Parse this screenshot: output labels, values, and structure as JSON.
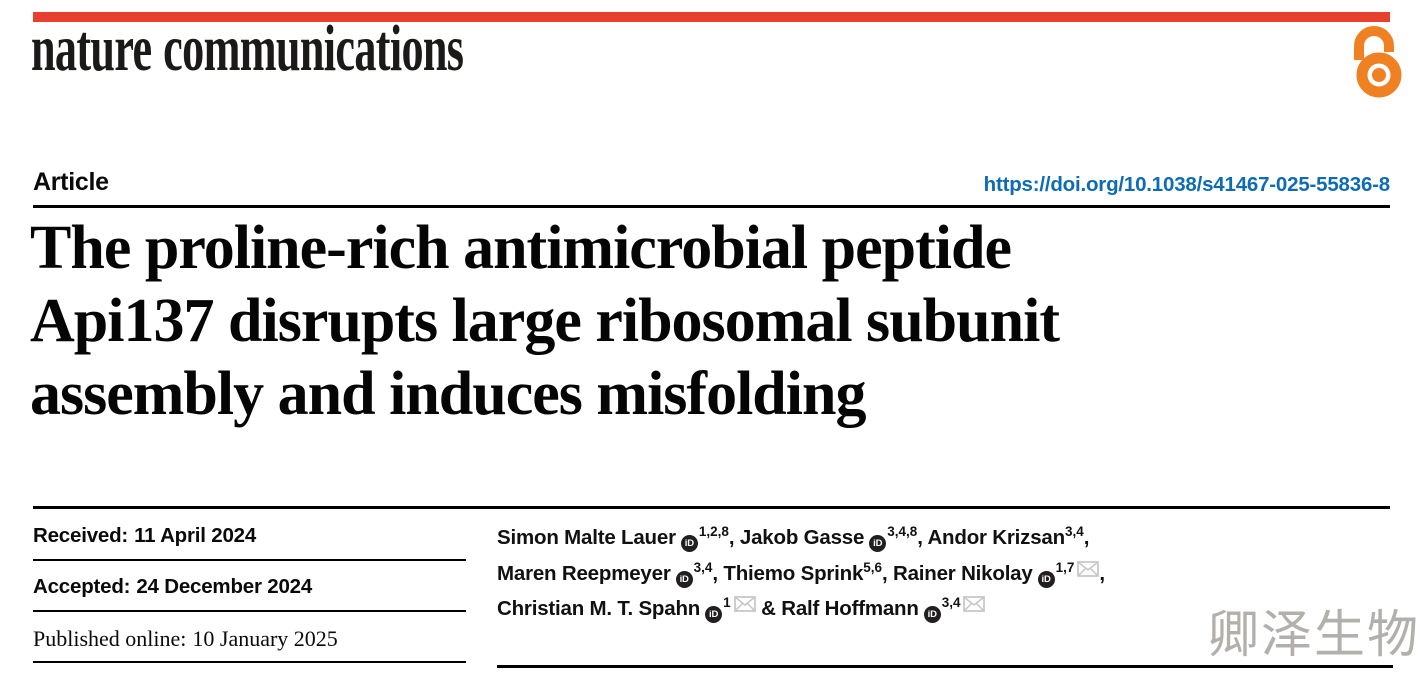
{
  "brand": {
    "journal": "nature communications",
    "topbar_color": "#e8402e"
  },
  "icons": {
    "open_access": "open-access-padlock",
    "orcid": "orcid-id-badge",
    "envelope": "email-envelope"
  },
  "colors": {
    "brand_red": "#e8402e",
    "link_blue": "#0d6cb4",
    "open_access_orange": "#ef8123",
    "watermark_gray": "#b3b0ab",
    "envelope_gray": "#c6c6c6"
  },
  "article": {
    "kind_label": "Article",
    "doi": "https://doi.org/10.1038/s41467-025-55836-8",
    "title_lines": [
      "The proline-rich antimicrobial peptide",
      "Api137 disrupts large ribosomal subunit",
      "assembly and induces misfolding"
    ]
  },
  "dates": {
    "rows": [
      {
        "label": "Received:",
        "value": "11 April 2024",
        "style": "sans"
      },
      {
        "label": "Accepted:",
        "value": "24 December 2024",
        "style": "sans"
      },
      {
        "label": "Published online:",
        "value": "10 January 2025",
        "style": "serif"
      }
    ]
  },
  "authors": {
    "byline": [
      {
        "name": "Simon Malte Lauer",
        "orcid": true,
        "sup": "1,2,8",
        "envelope": false,
        "sep": ", ",
        "br": false
      },
      {
        "name": "Jakob Gasse",
        "orcid": true,
        "sup": "3,4,8",
        "envelope": false,
        "sep": ", ",
        "br": false
      },
      {
        "name": "Andor Krizsan",
        "orcid": false,
        "sup": "3,4",
        "envelope": false,
        "sep": ",",
        "br": true
      },
      {
        "name": "Maren Reepmeyer",
        "orcid": true,
        "sup": "3,4",
        "envelope": false,
        "sep": ", ",
        "br": false
      },
      {
        "name": "Thiemo Sprink",
        "orcid": false,
        "sup": "5,6",
        "envelope": false,
        "sep": ", ",
        "br": false
      },
      {
        "name": "Rainer Nikolay",
        "orcid": true,
        "sup": "1,7",
        "envelope": true,
        "sep": ",",
        "br": true
      },
      {
        "name": "Christian M. T. Spahn",
        "orcid": true,
        "sup": "1",
        "envelope": true,
        "sep": " & ",
        "br": false
      },
      {
        "name": "Ralf Hoffmann",
        "orcid": true,
        "sup": "3,4",
        "envelope": true,
        "sep": "",
        "br": false
      }
    ],
    "orcid_glyph": "iD"
  },
  "watermark": {
    "text": "卿泽生物"
  }
}
